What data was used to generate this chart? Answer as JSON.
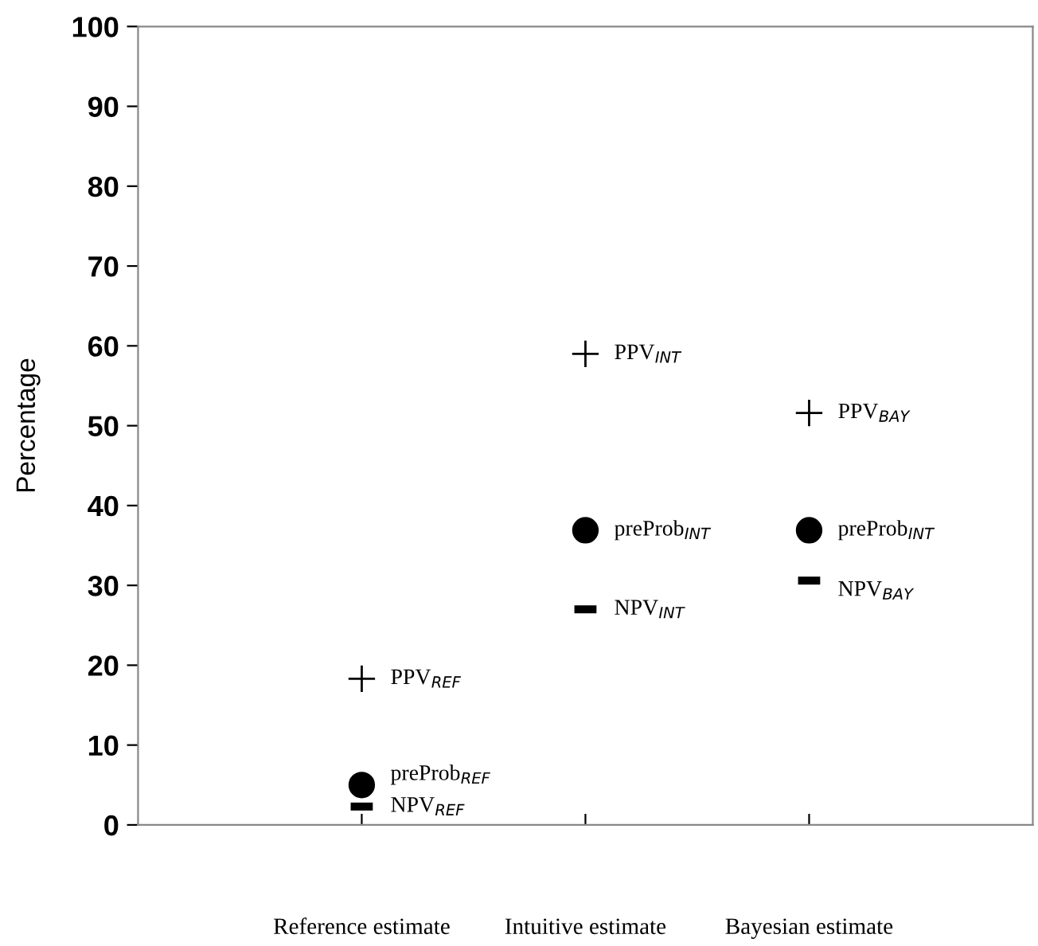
{
  "chart_data": {
    "type": "scatter",
    "ylabel": "Percentage",
    "categories": [
      "Reference estimate",
      "Intuitive estimate",
      "Bayesian estimate"
    ],
    "ylim": [
      0,
      100
    ],
    "yticks": [
      0,
      10,
      20,
      30,
      40,
      50,
      60,
      70,
      80,
      90,
      100
    ],
    "grid": false,
    "legend": false,
    "series": [
      {
        "marker": "cross",
        "color": "#000000",
        "values": [
          18.3,
          59.0,
          51.6
        ],
        "value_labels": [
          "PPV$_{REF}$",
          "PPV$_{INT}$",
          "PPV$_{BAY}$"
        ]
      },
      {
        "marker": "circle",
        "color": "#000000",
        "values": [
          5.0,
          36.9,
          36.9
        ],
        "value_labels": [
          "preProb$_{REF}$",
          "preProb$_{INT}$",
          "preProb$_{INT}$"
        ]
      },
      {
        "color": "#000000",
        "values": [
          2.3,
          27.0,
          30.6
        ],
        "value_labels": [
          "NPV$_{REF}$",
          "NPV$_{INT}$",
          "NPV$_{BAY}$"
        ]
      }
    ]
  }
}
